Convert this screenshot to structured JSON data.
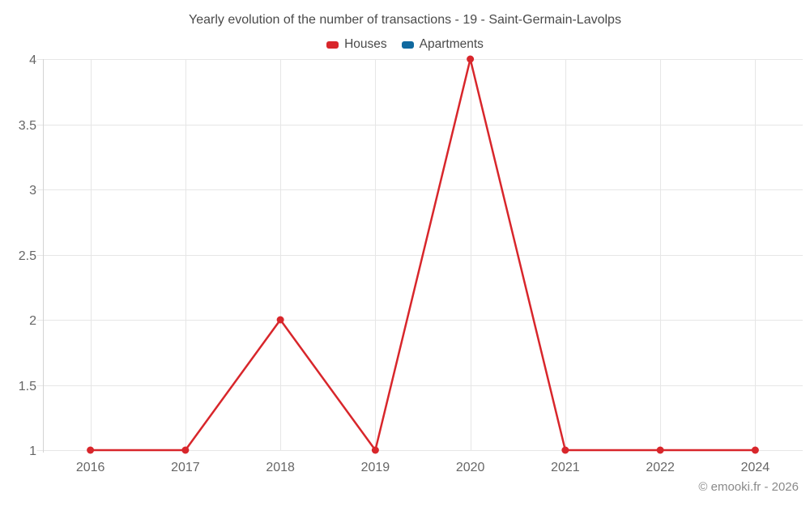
{
  "watermark": "© emooki.fr - 2026",
  "colors": {
    "houses": "#d8262b",
    "apartments": "#10699f",
    "grid": "#e6e6e6",
    "axis": "#d4d4d4",
    "tick_label": "#666666",
    "title_text": "#4a4a4a",
    "watermark_text": "#8a8a8a"
  },
  "chart_data": {
    "type": "line",
    "title": "Yearly evolution of the number of transactions - 19 - Saint-Germain-Lavolps",
    "categories": [
      "2016",
      "2017",
      "2018",
      "2019",
      "2020",
      "2021",
      "2022",
      "2024"
    ],
    "series": [
      {
        "name": "Houses",
        "color": "#d8262b",
        "values": [
          1,
          1,
          2,
          1,
          4,
          1,
          1,
          1
        ]
      },
      {
        "name": "Apartments",
        "color": "#10699f",
        "values": []
      }
    ],
    "xlabel": "",
    "ylabel": "",
    "ylim": [
      1,
      4
    ],
    "ytick_step": 0.5,
    "ytick_labels": [
      "1",
      "1.5",
      "2",
      "2.5",
      "3",
      "3.5",
      "4"
    ],
    "grid": true,
    "legend_position": "top",
    "marker": "circle"
  }
}
